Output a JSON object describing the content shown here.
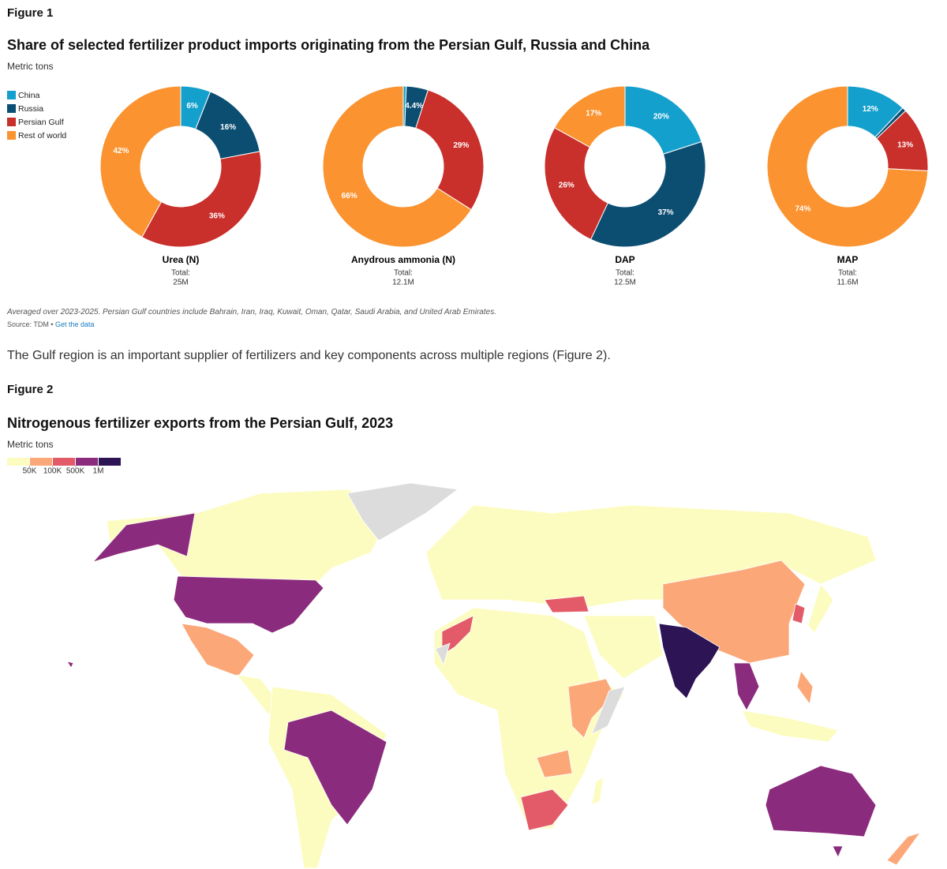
{
  "figure1_label": "Figure 1",
  "note": "Averaged over 2023-2025. Persian Gulf countries include Bahrain, Iran, Iraq, Kuwait, Oman, Qatar, Saudi Arabia, and United Arab Emirates.",
  "source": "Source: TDM •",
  "source_link": "Get the data",
  "paragraph": "The Gulf region is an important supplier of fertilizers and key components across multiple regions (Figure 2).",
  "figure2_label": "Figure 2",
  "chart_data": [
    {
      "type": "donut",
      "title": "Share of selected fertilizer product imports originating from the Persian Gulf, Russia and China",
      "subtitle": "Metric tons",
      "categories": [
        "China",
        "Russia",
        "Persian Gulf",
        "Rest of world"
      ],
      "colors": [
        "#14a0cd",
        "#0c4e72",
        "#c92f2b",
        "#fa9330"
      ],
      "total_label": "Total:",
      "charts": [
        {
          "name": "Urea (N)",
          "total": "25M",
          "values": [
            6,
            16,
            36,
            42
          ],
          "value_labels": [
            "6%",
            "16%",
            "36%",
            "42%"
          ]
        },
        {
          "name": "Anydrous ammonia (N)",
          "total": "12.1M",
          "values": [
            0.6,
            4.4,
            29,
            66
          ],
          "value_labels": [
            null,
            "4.4%",
            "29%",
            "66%"
          ]
        },
        {
          "name": "DAP",
          "total": "12.5M",
          "values": [
            20,
            37,
            26,
            17
          ],
          "value_labels": [
            "20%",
            "37%",
            "26%",
            "17%"
          ]
        },
        {
          "name": "MAP",
          "total": "11.6M",
          "values": [
            12,
            0.8,
            13,
            74
          ],
          "value_labels": [
            "12%",
            null,
            "13%",
            "74%"
          ]
        }
      ]
    },
    {
      "type": "choropleth",
      "title": "Nitrogenous fertilizer exports from the Persian Gulf, 2023",
      "subtitle": "Metric tons",
      "colors": [
        "#fcfcc0",
        "#fba778",
        "#e35b68",
        "#8b2b7d",
        "#2c1455"
      ],
      "ticks": [
        {
          "value": 50000,
          "label": "50K"
        },
        {
          "value": 100000,
          "label": "100K"
        },
        {
          "value": 500000,
          "label": "500K"
        },
        {
          "value": 1000000,
          "label": "1M"
        }
      ]
    }
  ]
}
